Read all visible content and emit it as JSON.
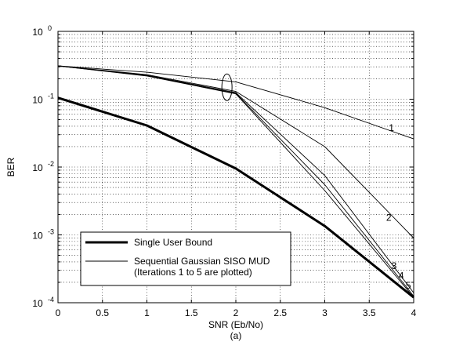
{
  "chart_data": {
    "type": "line",
    "title": "",
    "xlabel": "SNR (Eb/No)",
    "ylabel": "BER",
    "caption": "(a)",
    "xlim": [
      0,
      4
    ],
    "ylim": [
      0.0001,
      1
    ],
    "y_scale": "log",
    "grid": true,
    "x_ticks": [
      {
        "value": 0,
        "label": "0"
      },
      {
        "value": 0.5,
        "label": "0.5"
      },
      {
        "value": 1,
        "label": "1"
      },
      {
        "value": 1.5,
        "label": "1.5"
      },
      {
        "value": 2,
        "label": "2"
      },
      {
        "value": 2.5,
        "label": "2.5"
      },
      {
        "value": 3,
        "label": "3"
      },
      {
        "value": 3.5,
        "label": "3.5"
      },
      {
        "value": 4,
        "label": "4"
      }
    ],
    "y_ticks": [
      {
        "value": 0.0001,
        "base": "10",
        "exp": "-4"
      },
      {
        "value": 0.001,
        "base": "10",
        "exp": "-3"
      },
      {
        "value": 0.01,
        "base": "10",
        "exp": "-2"
      },
      {
        "value": 0.1,
        "base": "10",
        "exp": "-1"
      },
      {
        "value": 1,
        "base": "10",
        "exp": "0"
      }
    ],
    "x": [
      0,
      1,
      2,
      3,
      4
    ],
    "series": [
      {
        "name": "Single User Bound",
        "style": "thick",
        "color": "#000000",
        "values": [
          0.105,
          0.041,
          0.0095,
          0.00135,
          0.00012
        ]
      },
      {
        "label": "1",
        "style": "thin",
        "color": "#000000",
        "values": [
          0.31,
          0.25,
          0.18,
          0.075,
          0.026
        ]
      },
      {
        "label": "2",
        "style": "thin",
        "color": "#000000",
        "values": [
          0.31,
          0.23,
          0.13,
          0.02,
          0.0009
        ]
      },
      {
        "label": "3",
        "style": "thin",
        "color": "#000000",
        "values": [
          0.31,
          0.225,
          0.125,
          0.0075,
          0.00014
        ]
      },
      {
        "label": "4",
        "style": "thin",
        "color": "#000000",
        "values": [
          0.31,
          0.222,
          0.122,
          0.0055,
          0.000125
        ]
      },
      {
        "label": "5",
        "style": "thin",
        "color": "#000000",
        "values": [
          0.31,
          0.22,
          0.12,
          0.0045,
          0.00012
        ]
      }
    ],
    "curve_labels": [
      {
        "text": "1",
        "x": 3.75,
        "y": 0.038
      },
      {
        "text": "2",
        "x": 3.72,
        "y": 0.0018
      },
      {
        "text": "3",
        "x": 3.78,
        "y": 0.00035
      },
      {
        "text": "4",
        "x": 3.86,
        "y": 0.00025
      },
      {
        "text": "5",
        "x": 3.94,
        "y": 0.00018
      }
    ],
    "annotation_ellipse": {
      "x": 1.9,
      "y": 0.15
    },
    "legend": {
      "position": "lower-left",
      "entries": [
        {
          "style": "thick",
          "lines": [
            "Single User Bound"
          ]
        },
        {
          "style": "thin",
          "lines": [
            "Sequential Gaussian SISO MUD",
            "(Iterations 1 to 5 are plotted)"
          ]
        }
      ]
    }
  }
}
